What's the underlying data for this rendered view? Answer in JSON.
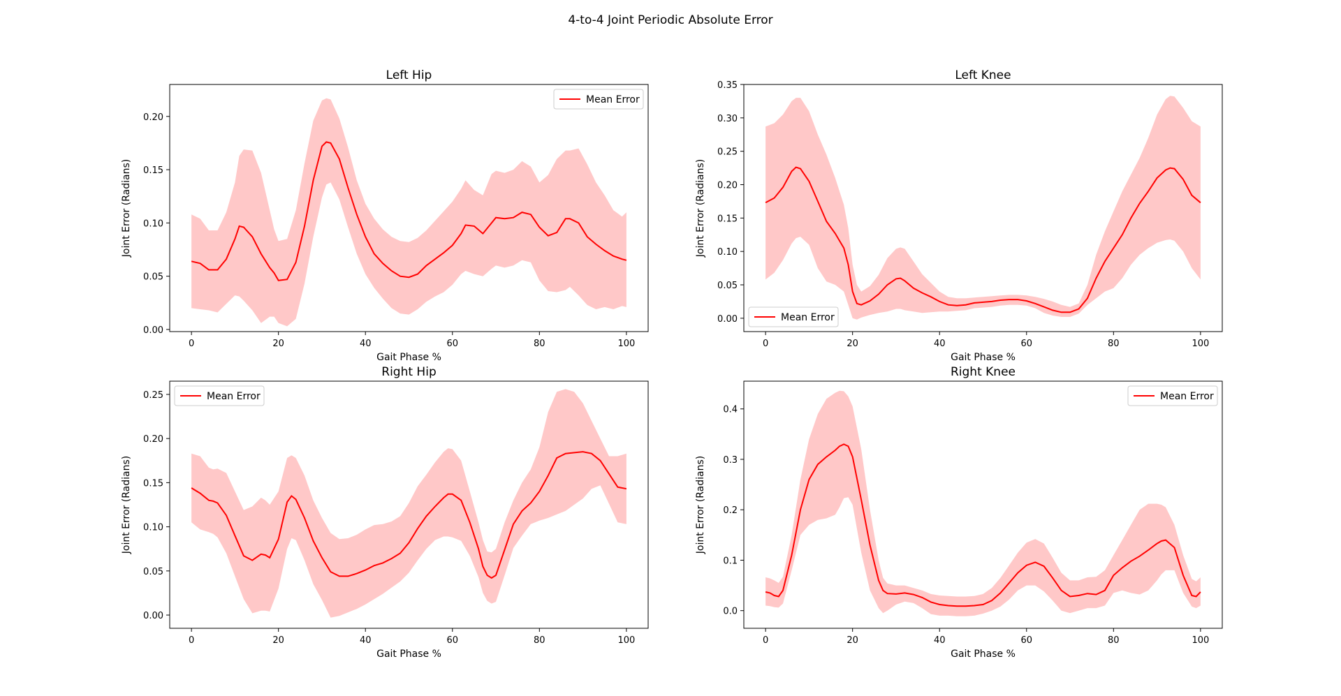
{
  "figure": {
    "title": "4-to-4 Joint Periodic Absolute Error"
  },
  "colors": {
    "line": "#ff0000",
    "band": "#ffc8c8",
    "axis": "#000000"
  },
  "chart_data": [
    {
      "type": "line",
      "title": "Left Hip",
      "xlabel": "Gait Phase %",
      "ylabel": "Joint Error (Radians)",
      "xlim": [
        -5,
        105
      ],
      "ylim": [
        -0.002,
        0.23
      ],
      "xticks": [
        0,
        20,
        40,
        60,
        80,
        100
      ],
      "yticks": [
        0.0,
        0.05,
        0.1,
        0.15,
        0.2
      ],
      "ytick_labels": [
        "0.00",
        "0.05",
        "0.10",
        "0.15",
        "0.20"
      ],
      "legend": {
        "label": "Mean Error",
        "loc": "upper right"
      },
      "x": [
        0,
        2,
        4,
        6,
        8,
        10,
        11,
        12,
        14,
        16,
        18,
        19,
        20,
        22,
        24,
        26,
        28,
        30,
        31,
        32,
        34,
        36,
        38,
        40,
        42,
        44,
        46,
        48,
        50,
        52,
        54,
        56,
        58,
        60,
        62,
        63,
        65,
        67,
        69,
        70,
        72,
        74,
        76,
        78,
        80,
        82,
        84,
        86,
        87,
        89,
        91,
        93,
        95,
        97,
        99,
        100
      ],
      "mean": [
        0.064,
        0.062,
        0.056,
        0.056,
        0.066,
        0.085,
        0.097,
        0.096,
        0.087,
        0.071,
        0.058,
        0.053,
        0.046,
        0.047,
        0.063,
        0.097,
        0.14,
        0.172,
        0.176,
        0.175,
        0.16,
        0.133,
        0.108,
        0.087,
        0.071,
        0.062,
        0.055,
        0.05,
        0.049,
        0.052,
        0.06,
        0.066,
        0.072,
        0.079,
        0.09,
        0.098,
        0.097,
        0.09,
        0.1,
        0.105,
        0.104,
        0.105,
        0.11,
        0.108,
        0.096,
        0.088,
        0.091,
        0.104,
        0.104,
        0.1,
        0.087,
        0.08,
        0.074,
        0.069,
        0.066,
        0.065
      ],
      "upper": [
        0.108,
        0.104,
        0.093,
        0.093,
        0.11,
        0.138,
        0.163,
        0.169,
        0.168,
        0.147,
        0.112,
        0.094,
        0.083,
        0.085,
        0.112,
        0.156,
        0.196,
        0.215,
        0.217,
        0.216,
        0.198,
        0.171,
        0.14,
        0.118,
        0.104,
        0.094,
        0.087,
        0.083,
        0.082,
        0.086,
        0.093,
        0.102,
        0.111,
        0.12,
        0.132,
        0.14,
        0.131,
        0.126,
        0.146,
        0.149,
        0.147,
        0.15,
        0.158,
        0.153,
        0.138,
        0.145,
        0.16,
        0.168,
        0.168,
        0.17,
        0.155,
        0.138,
        0.126,
        0.112,
        0.106,
        0.11
      ],
      "lower": [
        0.02,
        0.019,
        0.018,
        0.016,
        0.024,
        0.032,
        0.031,
        0.027,
        0.018,
        0.006,
        0.012,
        0.012,
        0.006,
        0.003,
        0.01,
        0.043,
        0.087,
        0.124,
        0.136,
        0.138,
        0.122,
        0.096,
        0.071,
        0.052,
        0.039,
        0.029,
        0.02,
        0.015,
        0.014,
        0.019,
        0.026,
        0.031,
        0.035,
        0.042,
        0.052,
        0.055,
        0.052,
        0.05,
        0.057,
        0.06,
        0.058,
        0.06,
        0.065,
        0.063,
        0.046,
        0.036,
        0.035,
        0.037,
        0.04,
        0.032,
        0.023,
        0.019,
        0.021,
        0.019,
        0.022,
        0.021
      ]
    },
    {
      "type": "line",
      "title": "Left Knee",
      "xlabel": "Gait Phase %",
      "ylabel": "Joint Error (Radians)",
      "xlim": [
        -5,
        105
      ],
      "ylim": [
        -0.02,
        0.35
      ],
      "xticks": [
        0,
        20,
        40,
        60,
        80,
        100
      ],
      "yticks": [
        0.0,
        0.05,
        0.1,
        0.15,
        0.2,
        0.25,
        0.3,
        0.35
      ],
      "ytick_labels": [
        "0.00",
        "0.05",
        "0.10",
        "0.15",
        "0.20",
        "0.25",
        "0.30",
        "0.35"
      ],
      "legend": {
        "label": "Mean Error",
        "loc": "lower left"
      },
      "x": [
        0,
        2,
        4,
        6,
        7,
        8,
        10,
        12,
        14,
        16,
        18,
        19,
        20,
        21,
        22,
        24,
        26,
        28,
        30,
        31,
        32,
        34,
        36,
        38,
        40,
        42,
        44,
        46,
        48,
        50,
        52,
        54,
        56,
        58,
        60,
        62,
        64,
        66,
        68,
        70,
        72,
        74,
        76,
        78,
        80,
        82,
        84,
        86,
        88,
        90,
        92,
        93,
        94,
        96,
        98,
        100
      ],
      "mean": [
        0.173,
        0.18,
        0.196,
        0.22,
        0.226,
        0.224,
        0.205,
        0.175,
        0.145,
        0.127,
        0.105,
        0.08,
        0.04,
        0.022,
        0.02,
        0.026,
        0.036,
        0.05,
        0.059,
        0.06,
        0.056,
        0.045,
        0.038,
        0.032,
        0.025,
        0.02,
        0.019,
        0.02,
        0.023,
        0.024,
        0.025,
        0.027,
        0.028,
        0.028,
        0.026,
        0.022,
        0.017,
        0.012,
        0.009,
        0.009,
        0.014,
        0.03,
        0.06,
        0.085,
        0.105,
        0.125,
        0.15,
        0.172,
        0.19,
        0.21,
        0.222,
        0.225,
        0.224,
        0.208,
        0.184,
        0.173
      ],
      "upper": [
        0.287,
        0.292,
        0.305,
        0.325,
        0.33,
        0.33,
        0.31,
        0.275,
        0.245,
        0.21,
        0.17,
        0.135,
        0.08,
        0.05,
        0.04,
        0.048,
        0.065,
        0.09,
        0.104,
        0.106,
        0.104,
        0.085,
        0.066,
        0.053,
        0.04,
        0.032,
        0.03,
        0.03,
        0.031,
        0.032,
        0.033,
        0.034,
        0.035,
        0.035,
        0.034,
        0.032,
        0.029,
        0.025,
        0.02,
        0.017,
        0.022,
        0.05,
        0.095,
        0.13,
        0.16,
        0.19,
        0.215,
        0.24,
        0.27,
        0.305,
        0.328,
        0.333,
        0.332,
        0.315,
        0.295,
        0.287
      ],
      "lower": [
        0.058,
        0.068,
        0.087,
        0.112,
        0.12,
        0.122,
        0.11,
        0.075,
        0.055,
        0.05,
        0.04,
        0.02,
        0.0,
        -0.002,
        0.001,
        0.005,
        0.008,
        0.01,
        0.014,
        0.014,
        0.012,
        0.01,
        0.008,
        0.009,
        0.01,
        0.01,
        0.011,
        0.012,
        0.015,
        0.016,
        0.017,
        0.019,
        0.02,
        0.02,
        0.019,
        0.015,
        0.008,
        0.004,
        0.002,
        0.002,
        0.007,
        0.02,
        0.03,
        0.04,
        0.045,
        0.06,
        0.08,
        0.095,
        0.105,
        0.113,
        0.117,
        0.118,
        0.116,
        0.1,
        0.075,
        0.058
      ]
    },
    {
      "type": "line",
      "title": "Right Hip",
      "xlabel": "Gait Phase %",
      "ylabel": "Joint Error (Radians)",
      "xlim": [
        -5,
        105
      ],
      "ylim": [
        -0.015,
        0.265
      ],
      "xticks": [
        0,
        20,
        40,
        60,
        80,
        100
      ],
      "yticks": [
        0.0,
        0.05,
        0.1,
        0.15,
        0.2,
        0.25
      ],
      "ytick_labels": [
        "0.00",
        "0.05",
        "0.10",
        "0.15",
        "0.20",
        "0.25"
      ],
      "legend": {
        "label": "Mean Error",
        "loc": "upper left"
      },
      "x": [
        0,
        2,
        4,
        5,
        6,
        8,
        10,
        12,
        14,
        16,
        17,
        18,
        20,
        22,
        23,
        24,
        26,
        28,
        30,
        32,
        34,
        36,
        38,
        40,
        42,
        44,
        46,
        48,
        50,
        52,
        54,
        56,
        58,
        59,
        60,
        62,
        64,
        66,
        67,
        68,
        69,
        70,
        72,
        74,
        76,
        78,
        80,
        82,
        84,
        86,
        88,
        90,
        92,
        94,
        96,
        98,
        100
      ],
      "mean": [
        0.144,
        0.138,
        0.13,
        0.129,
        0.127,
        0.113,
        0.09,
        0.067,
        0.062,
        0.069,
        0.068,
        0.065,
        0.086,
        0.128,
        0.135,
        0.131,
        0.11,
        0.084,
        0.065,
        0.049,
        0.044,
        0.044,
        0.047,
        0.051,
        0.056,
        0.059,
        0.064,
        0.07,
        0.082,
        0.098,
        0.112,
        0.123,
        0.133,
        0.137,
        0.137,
        0.13,
        0.105,
        0.075,
        0.055,
        0.045,
        0.042,
        0.045,
        0.074,
        0.103,
        0.118,
        0.127,
        0.14,
        0.158,
        0.178,
        0.183,
        0.184,
        0.185,
        0.183,
        0.175,
        0.16,
        0.145,
        0.143
      ],
      "upper": [
        0.183,
        0.18,
        0.167,
        0.165,
        0.166,
        0.161,
        0.14,
        0.119,
        0.123,
        0.133,
        0.13,
        0.125,
        0.14,
        0.178,
        0.181,
        0.178,
        0.158,
        0.13,
        0.11,
        0.093,
        0.086,
        0.087,
        0.091,
        0.097,
        0.102,
        0.103,
        0.106,
        0.112,
        0.127,
        0.146,
        0.159,
        0.173,
        0.185,
        0.189,
        0.188,
        0.175,
        0.14,
        0.105,
        0.085,
        0.072,
        0.071,
        0.075,
        0.105,
        0.13,
        0.15,
        0.165,
        0.19,
        0.23,
        0.253,
        0.256,
        0.253,
        0.24,
        0.22,
        0.2,
        0.18,
        0.18,
        0.183
      ],
      "lower": [
        0.105,
        0.097,
        0.094,
        0.092,
        0.088,
        0.07,
        0.044,
        0.018,
        0.002,
        0.005,
        0.005,
        0.004,
        0.03,
        0.075,
        0.087,
        0.085,
        0.062,
        0.035,
        0.017,
        -0.003,
        -0.001,
        0.003,
        0.007,
        0.012,
        0.018,
        0.024,
        0.031,
        0.038,
        0.048,
        0.062,
        0.075,
        0.085,
        0.089,
        0.089,
        0.088,
        0.084,
        0.067,
        0.043,
        0.025,
        0.016,
        0.013,
        0.015,
        0.045,
        0.076,
        0.09,
        0.103,
        0.107,
        0.11,
        0.114,
        0.118,
        0.125,
        0.132,
        0.143,
        0.147,
        0.126,
        0.105,
        0.103
      ]
    },
    {
      "type": "line",
      "title": "Right Knee",
      "xlabel": "Gait Phase %",
      "ylabel": "Joint Error (Radians)",
      "xlim": [
        -5,
        105
      ],
      "ylim": [
        -0.035,
        0.455
      ],
      "xticks": [
        0,
        20,
        40,
        60,
        80,
        100
      ],
      "yticks": [
        0.0,
        0.1,
        0.2,
        0.3,
        0.4
      ],
      "ytick_labels": [
        "0.0",
        "0.1",
        "0.2",
        "0.3",
        "0.4"
      ],
      "legend": {
        "label": "Mean Error",
        "loc": "upper right"
      },
      "x": [
        0,
        1,
        2,
        3,
        4,
        6,
        8,
        10,
        12,
        14,
        16,
        17,
        18,
        19,
        20,
        22,
        24,
        26,
        27,
        28,
        30,
        32,
        34,
        36,
        38,
        40,
        42,
        44,
        46,
        48,
        50,
        52,
        54,
        56,
        58,
        60,
        62,
        64,
        66,
        68,
        70,
        72,
        74,
        76,
        78,
        80,
        82,
        84,
        86,
        88,
        90,
        91,
        92,
        94,
        96,
        98,
        99,
        100
      ],
      "mean": [
        0.037,
        0.035,
        0.03,
        0.028,
        0.04,
        0.11,
        0.2,
        0.26,
        0.29,
        0.305,
        0.318,
        0.326,
        0.33,
        0.326,
        0.305,
        0.22,
        0.13,
        0.06,
        0.04,
        0.034,
        0.033,
        0.035,
        0.032,
        0.026,
        0.017,
        0.012,
        0.01,
        0.009,
        0.009,
        0.01,
        0.012,
        0.02,
        0.035,
        0.055,
        0.075,
        0.09,
        0.096,
        0.088,
        0.065,
        0.04,
        0.028,
        0.03,
        0.034,
        0.032,
        0.04,
        0.07,
        0.085,
        0.098,
        0.108,
        0.12,
        0.133,
        0.138,
        0.14,
        0.125,
        0.07,
        0.03,
        0.028,
        0.037
      ],
      "upper": [
        0.066,
        0.064,
        0.06,
        0.055,
        0.067,
        0.15,
        0.26,
        0.34,
        0.39,
        0.42,
        0.432,
        0.436,
        0.435,
        0.425,
        0.405,
        0.32,
        0.2,
        0.1,
        0.065,
        0.054,
        0.05,
        0.05,
        0.045,
        0.04,
        0.033,
        0.03,
        0.029,
        0.028,
        0.028,
        0.029,
        0.033,
        0.045,
        0.065,
        0.09,
        0.115,
        0.135,
        0.142,
        0.133,
        0.105,
        0.075,
        0.06,
        0.06,
        0.066,
        0.067,
        0.08,
        0.11,
        0.14,
        0.17,
        0.2,
        0.212,
        0.212,
        0.21,
        0.205,
        0.17,
        0.11,
        0.063,
        0.058,
        0.066
      ],
      "lower": [
        0.01,
        0.009,
        0.007,
        0.006,
        0.014,
        0.08,
        0.15,
        0.17,
        0.18,
        0.183,
        0.19,
        0.205,
        0.223,
        0.225,
        0.21,
        0.115,
        0.04,
        0.005,
        -0.005,
        0.0,
        0.012,
        0.018,
        0.015,
        0.005,
        -0.007,
        -0.01,
        -0.01,
        -0.011,
        -0.011,
        -0.01,
        -0.006,
        0.0,
        0.008,
        0.022,
        0.04,
        0.05,
        0.05,
        0.038,
        0.02,
        0.0,
        -0.005,
        0.0,
        0.005,
        0.005,
        0.01,
        0.035,
        0.04,
        0.035,
        0.032,
        0.04,
        0.06,
        0.072,
        0.08,
        0.08,
        0.035,
        0.008,
        0.005,
        0.01
      ]
    }
  ]
}
